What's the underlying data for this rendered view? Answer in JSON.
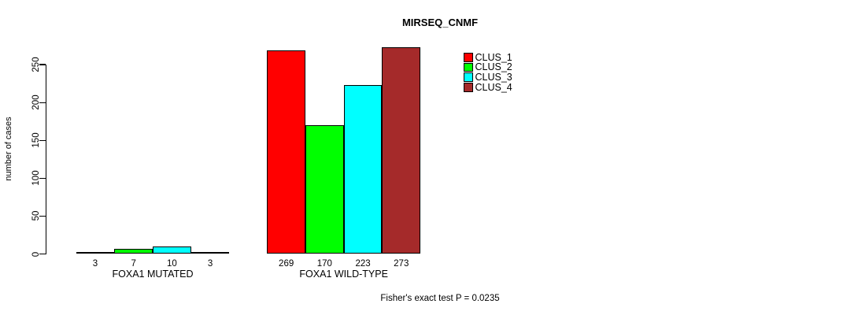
{
  "chart_data": {
    "type": "bar",
    "title": "MIRSEQ_CNMF",
    "ylabel": "number of cases",
    "xlabel": "",
    "annotation": "Fisher's exact test P = 0.0235",
    "yticks": [
      "0",
      "50",
      "100",
      "150",
      "200",
      "250"
    ],
    "ytick_values": [
      0,
      50,
      100,
      150,
      200,
      250
    ],
    "ylim": [
      0,
      273
    ],
    "grid": false,
    "legend_position": "top-right",
    "bar_border_color": "#000000",
    "categories": [
      "FOXA1 MUTATED",
      "FOXA1 WILD-TYPE"
    ],
    "series": [
      {
        "name": "CLUS_1",
        "color": "#ff0000",
        "values": [
          3,
          269
        ]
      },
      {
        "name": "CLUS_2",
        "color": "#00ff00",
        "values": [
          7,
          170
        ]
      },
      {
        "name": "CLUS_3",
        "color": "#00ffff",
        "values": [
          10,
          223
        ]
      },
      {
        "name": "CLUS_4",
        "color": "#a52a2a",
        "values": [
          3,
          273
        ]
      }
    ]
  }
}
